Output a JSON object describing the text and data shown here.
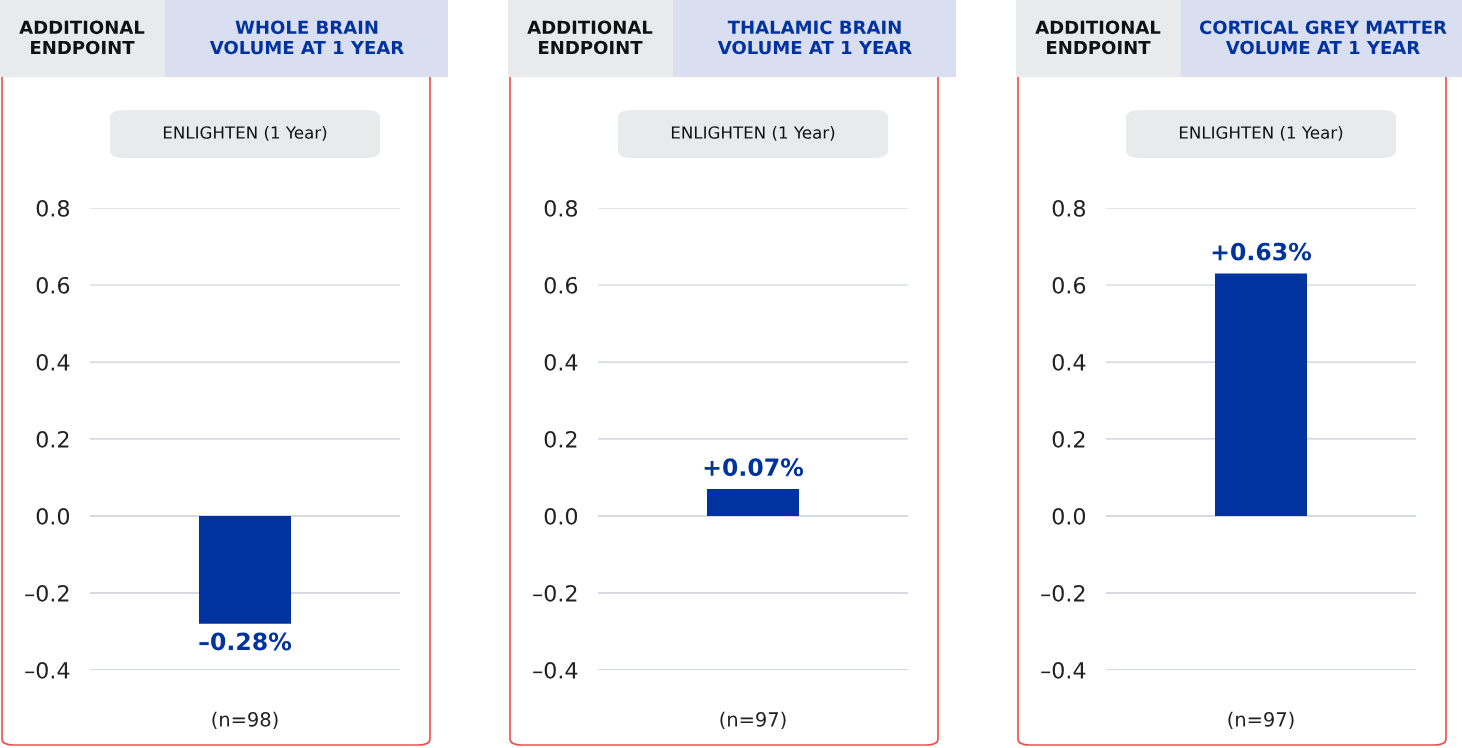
{
  "chart_data": [
    {
      "type": "bar",
      "title": "ADDITIONAL ENDPOINT",
      "subtitle": "WHOLE BRAIN VOLUME AT 1 YEAR",
      "annotations": [
        "ENLIGHTEN (1 Year)"
      ],
      "categories": [
        "(n=98)"
      ],
      "values": [
        -0.28
      ],
      "value_labels": [
        "–0.28%"
      ],
      "color": "#0033a0",
      "ylim": [
        -0.4,
        0.8
      ],
      "yticks": [
        {
          "value": -0.4,
          "label": "–0.4"
        },
        {
          "value": -0.2,
          "label": "–0.2"
        },
        {
          "value": 0,
          "label": "0.0"
        },
        0.2,
        0.4,
        0.6,
        0.8
      ],
      "grid": "y"
    },
    {
      "type": "bar",
      "title": "ADDITIONAL ENDPOINT",
      "subtitle": "THALAMIC BRAIN VOLUME AT 1 YEAR",
      "annotations": [
        "ENLIGHTEN (1 Year)"
      ],
      "categories": [
        "(n=97)"
      ],
      "values": [
        0.07
      ],
      "value_labels": [
        "+0.07%"
      ],
      "color": "#0033a0",
      "ylim": [
        -0.4,
        0.8
      ],
      "yticks": [
        {
          "value": -0.4,
          "label": "–0.4"
        },
        {
          "value": -0.2,
          "label": "–0.2"
        },
        {
          "value": 0,
          "label": "0.0"
        },
        0.2,
        0.4,
        0.6,
        0.8
      ],
      "grid": "y"
    },
    {
      "type": "bar",
      "title": "ADDITIONAL ENDPOINT",
      "subtitle": "CORTICAL GREY MATTER VOLUME AT 1 YEAR",
      "annotations": [
        "ENLIGHTEN (1 Year)"
      ],
      "categories": [
        "(n=97)"
      ],
      "values": [
        0.63
      ],
      "value_labels": [
        "+0.63%"
      ],
      "color": "#0033a0",
      "ylim": [
        -0.4,
        0.8
      ],
      "yticks": [
        {
          "value": -0.4,
          "label": "–0.4"
        },
        {
          "value": -0.2,
          "label": "–0.2"
        },
        {
          "value": 0,
          "label": "0.0"
        },
        0.2,
        0.4,
        0.6,
        0.8
      ],
      "grid": "y"
    }
  ]
}
